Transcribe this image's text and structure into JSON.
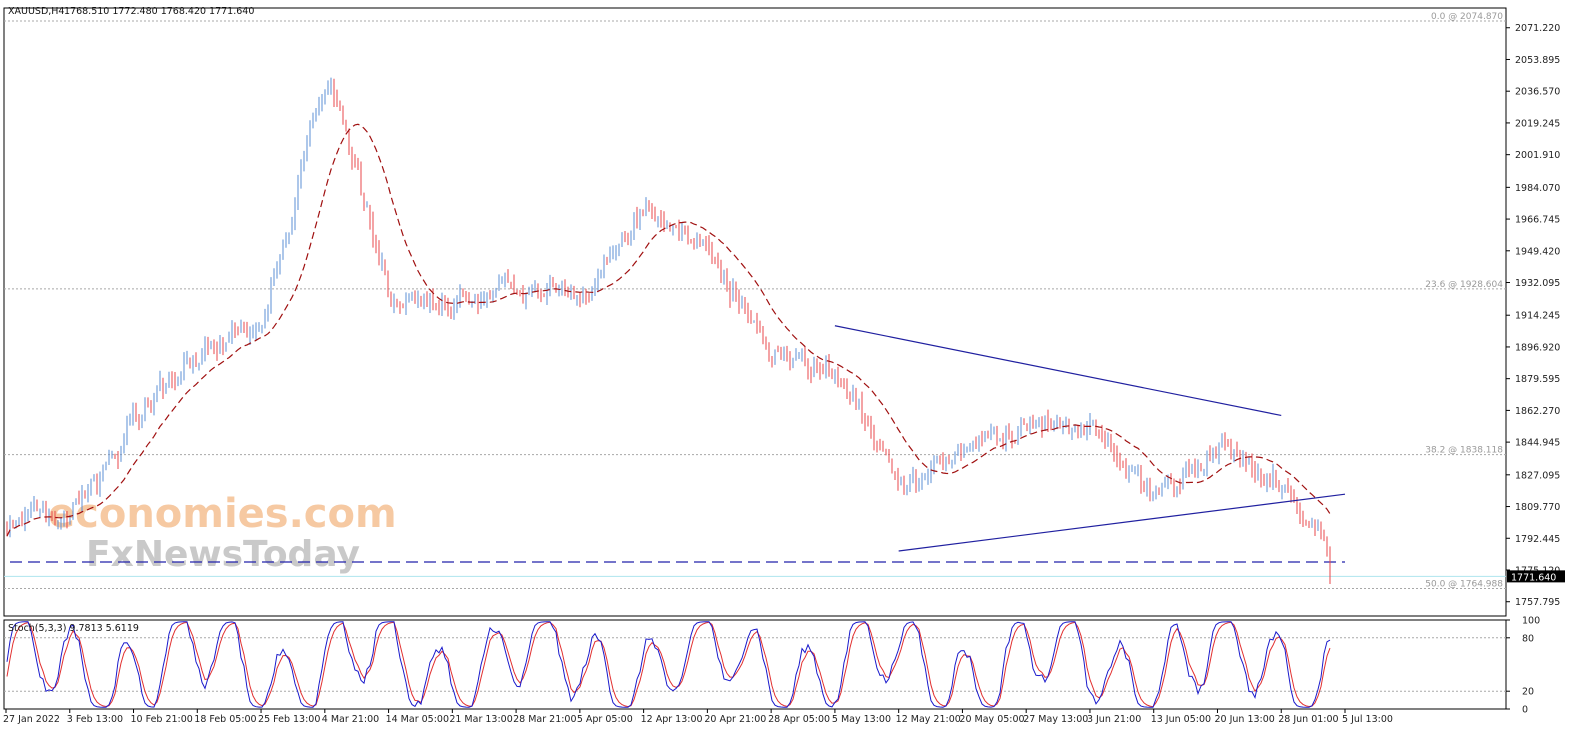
{
  "header": {
    "symbol": "XAUUSD,H4",
    "ohlc": "1768.510 1772.480 1768.420 1771.640"
  },
  "watermark": {
    "line1": "economies.com",
    "line2": "FxNewsToday"
  },
  "colors": {
    "bull": "#5b8fd6",
    "bear": "#e8474b",
    "ma": "#a01010",
    "trendline": "#2020a0",
    "support_dash": "#2222aa",
    "fib_dotted": "#a8a8a8",
    "bid_line": "#aee4ee",
    "stoch_main": "#1a1acc",
    "stoch_signal": "#e23030"
  },
  "chart_data": [
    {
      "type": "candlestick",
      "symbol": "XAUUSD",
      "timeframe": "H4",
      "last_price": 1771.64,
      "last_price_label": "1771.640",
      "ylim": [
        1750.0,
        2082.0
      ],
      "y_ticks": [
        "2071.220",
        "2053.895",
        "2036.570",
        "2019.245",
        "2001.910",
        "1984.070",
        "1966.745",
        "1949.420",
        "1932.095",
        "1914.245",
        "1896.920",
        "1879.595",
        "1862.270",
        "1844.945",
        "1827.095",
        "1809.770",
        "1792.445",
        "1775.120",
        "1757.795"
      ],
      "x_ticks": [
        "27 Jan 2022",
        "3 Feb 13:00",
        "10 Feb 21:00",
        "18 Feb 05:00",
        "25 Feb 13:00",
        "4 Mar 21:00",
        "14 Mar 05:00",
        "21 Mar 13:00",
        "28 Mar 21:00",
        "5 Apr 05:00",
        "12 Apr 13:00",
        "20 Apr 21:00",
        "28 Apr 05:00",
        "5 May 13:00",
        "12 May 21:00",
        "20 May 05:00",
        "27 May 13:00",
        "3 Jun 21:00",
        "13 Jun 05:00",
        "20 Jun 13:00",
        "28 Jun 01:00",
        "5 Jul 13:00"
      ],
      "close_path": [
        [
          "27 Jan 2022",
          1800
        ],
        [
          "3 Feb 13:00",
          1806
        ],
        [
          "10 Feb 21:00",
          1858
        ],
        [
          "18 Feb 05:00",
          1896
        ],
        [
          "25 Feb 13:00",
          1908
        ],
        [
          "4 Mar 21:00",
          2050
        ],
        [
          "14 Mar 05:00",
          1922
        ],
        [
          "21 Mar 13:00",
          1920
        ],
        [
          "28 Mar 21:00",
          1928
        ],
        [
          "5 Apr 05:00",
          1925
        ],
        [
          "12 Apr 13:00",
          1976
        ],
        [
          "20 Apr 21:00",
          1948
        ],
        [
          "28 Apr 05:00",
          1893
        ],
        [
          "5 May 13:00",
          1883
        ],
        [
          "12 May 21:00",
          1818
        ],
        [
          "20 May 05:00",
          1843
        ],
        [
          "27 May 13:00",
          1855
        ],
        [
          "3 Jun 21:00",
          1852
        ],
        [
          "13 Jun 05:00",
          1815
        ],
        [
          "20 Jun 13:00",
          1842
        ],
        [
          "28 Jun 01:00",
          1822
        ],
        [
          "5 Jul 13:00",
          1771.64
        ]
      ],
      "fib_levels": [
        {
          "label": "0.0 @ 2074.870",
          "value": 2074.87
        },
        {
          "label": "23.6 @ 1928.604",
          "value": 1928.604
        },
        {
          "label": "38.2 @ 1838.118",
          "value": 1838.118
        },
        {
          "label": "50.0 @ 1764.988",
          "value": 1764.988
        }
      ],
      "support_level": 1779.5,
      "moving_average": "dashed, dark red",
      "triangle": {
        "upper": [
          [
            "5 May 13:00",
            1908.5
          ],
          [
            "28 Jun 01:00",
            1859.5
          ]
        ],
        "lower": [
          [
            "12 May 21:00",
            1785.5
          ],
          [
            "5 Jul 13:00",
            1816.5
          ]
        ]
      }
    },
    {
      "type": "line",
      "title": "Stoch(5,3,3) 9.7813 5.6119",
      "ylim": [
        0,
        100
      ],
      "y_ticks": [
        "100",
        "80",
        "20",
        "0"
      ],
      "levels": [
        80,
        20
      ]
    }
  ]
}
